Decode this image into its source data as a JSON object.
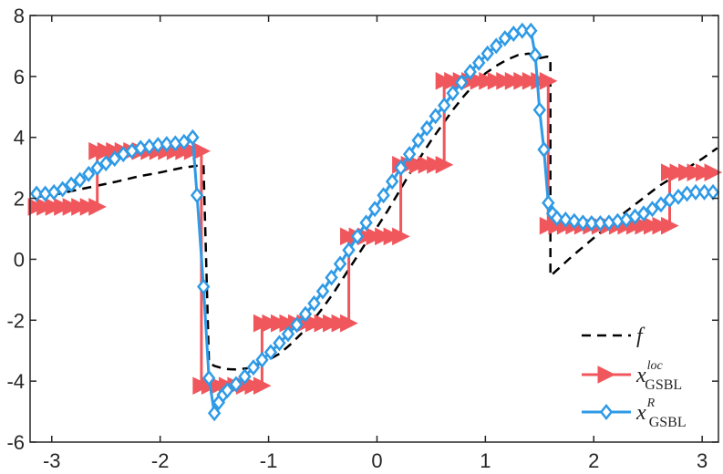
{
  "chart_data": {
    "type": "line",
    "xlim": [
      -3.2,
      3.15
    ],
    "ylim": [
      -6,
      8
    ],
    "x_ticks": [
      -3,
      -2,
      -1,
      0,
      1,
      2,
      3
    ],
    "y_ticks": [
      -6,
      -4,
      -2,
      0,
      2,
      4,
      6,
      8
    ],
    "x_tick_labels": [
      "-3",
      "-2",
      "-1",
      "0",
      "1",
      "2",
      "3"
    ],
    "y_tick_labels": [
      "-6",
      "-4",
      "-2",
      "0",
      "2",
      "4",
      "6",
      "8"
    ],
    "grid": false,
    "legend_position": "bottom-right",
    "series": [
      {
        "name": "f",
        "legend": {
          "main": "f",
          "sup": "",
          "sub": ""
        },
        "color": "#000000",
        "style": "dashed",
        "marker": "none",
        "x": [
          -3.14,
          -3.0,
          -2.8,
          -2.6,
          -2.4,
          -2.2,
          -2.0,
          -1.8,
          -1.6,
          -1.55,
          -1.5,
          -1.4,
          -1.3,
          -1.2,
          -1.1,
          -1.0,
          -0.9,
          -0.8,
          -0.7,
          -0.6,
          -0.5,
          -0.4,
          -0.3,
          -0.2,
          -0.1,
          0.0,
          0.1,
          0.2,
          0.3,
          0.4,
          0.5,
          0.6,
          0.7,
          0.8,
          0.9,
          1.0,
          1.1,
          1.2,
          1.3,
          1.4,
          1.5,
          1.57,
          1.6,
          1.6,
          1.8,
          2.0,
          2.2,
          2.4,
          2.6,
          2.8,
          3.0,
          3.14
        ],
        "y": [
          2.05,
          2.1,
          2.25,
          2.4,
          2.55,
          2.72,
          2.85,
          3.0,
          3.1,
          -3.4,
          -3.5,
          -3.6,
          -3.62,
          -3.58,
          -3.45,
          -3.3,
          -3.1,
          -2.8,
          -2.45,
          -2.05,
          -1.6,
          -1.1,
          -0.55,
          0.0,
          0.55,
          1.05,
          1.6,
          2.2,
          2.8,
          3.35,
          3.9,
          4.4,
          4.9,
          5.35,
          5.75,
          6.1,
          6.35,
          6.55,
          6.7,
          6.75,
          6.6,
          6.65,
          6.6,
          -0.55,
          0.1,
          0.7,
          1.3,
          1.85,
          2.4,
          2.85,
          3.3,
          3.65
        ]
      },
      {
        "name": "x_GSBL^loc",
        "legend": {
          "main": "x",
          "sup": "loc",
          "sub": "GSBL"
        },
        "color": "#f0575c",
        "style": "solid",
        "marker": "triangle-right",
        "x": [
          -3.14,
          -3.06,
          -2.98,
          -2.9,
          -2.82,
          -2.74,
          -2.66,
          -2.58,
          -2.58,
          -2.5,
          -2.42,
          -2.34,
          -2.26,
          -2.18,
          -2.1,
          -2.02,
          -1.94,
          -1.86,
          -1.78,
          -1.7,
          -1.62,
          -1.62,
          -1.54,
          -1.46,
          -1.38,
          -1.3,
          -1.22,
          -1.14,
          -1.06,
          -1.06,
          -0.98,
          -0.9,
          -0.82,
          -0.74,
          -0.66,
          -0.58,
          -0.5,
          -0.42,
          -0.34,
          -0.26,
          -0.26,
          -0.18,
          -0.1,
          -0.02,
          0.06,
          0.14,
          0.22,
          0.22,
          0.3,
          0.38,
          0.46,
          0.54,
          0.62,
          0.62,
          0.7,
          0.78,
          0.86,
          0.94,
          1.02,
          1.1,
          1.18,
          1.26,
          1.34,
          1.42,
          1.5,
          1.58,
          1.58,
          1.66,
          1.74,
          1.82,
          1.9,
          1.98,
          2.06,
          2.14,
          2.22,
          2.3,
          2.38,
          2.46,
          2.54,
          2.62,
          2.7,
          2.7,
          2.78,
          2.86,
          2.94,
          3.02,
          3.1
        ],
        "y": [
          1.72,
          1.72,
          1.72,
          1.72,
          1.72,
          1.72,
          1.72,
          1.72,
          3.55,
          3.55,
          3.55,
          3.55,
          3.55,
          3.55,
          3.55,
          3.55,
          3.55,
          3.55,
          3.55,
          3.55,
          3.55,
          -4.15,
          -4.15,
          -4.15,
          -4.15,
          -4.15,
          -4.15,
          -4.15,
          -4.15,
          -2.1,
          -2.1,
          -2.1,
          -2.1,
          -2.1,
          -2.1,
          -2.1,
          -2.1,
          -2.1,
          -2.1,
          -2.1,
          0.75,
          0.75,
          0.75,
          0.75,
          0.75,
          0.75,
          0.75,
          3.1,
          3.1,
          3.1,
          3.1,
          3.1,
          3.1,
          5.85,
          5.85,
          5.85,
          5.85,
          5.85,
          5.85,
          5.85,
          5.85,
          5.85,
          5.85,
          5.85,
          5.85,
          5.85,
          1.1,
          1.1,
          1.1,
          1.1,
          1.1,
          1.1,
          1.1,
          1.1,
          1.1,
          1.1,
          1.1,
          1.1,
          1.1,
          1.1,
          1.1,
          2.85,
          2.85,
          2.85,
          2.85,
          2.85,
          2.85
        ]
      },
      {
        "name": "x_GSBL^R",
        "legend": {
          "main": "x",
          "sup": "R",
          "sub": "GSBL"
        },
        "color": "#2f9ae6",
        "style": "solid",
        "marker": "diamond",
        "x": [
          -3.14,
          -3.06,
          -2.98,
          -2.9,
          -2.82,
          -2.74,
          -2.66,
          -2.58,
          -2.5,
          -2.42,
          -2.34,
          -2.26,
          -2.18,
          -2.1,
          -2.02,
          -1.94,
          -1.86,
          -1.78,
          -1.7,
          -1.66,
          -1.6,
          -1.55,
          -1.5,
          -1.46,
          -1.42,
          -1.38,
          -1.3,
          -1.22,
          -1.14,
          -1.06,
          -0.98,
          -0.9,
          -0.82,
          -0.74,
          -0.66,
          -0.58,
          -0.5,
          -0.42,
          -0.34,
          -0.26,
          -0.18,
          -0.1,
          -0.02,
          0.06,
          0.14,
          0.22,
          0.3,
          0.38,
          0.46,
          0.54,
          0.62,
          0.7,
          0.78,
          0.86,
          0.94,
          1.02,
          1.1,
          1.18,
          1.26,
          1.34,
          1.42,
          1.46,
          1.5,
          1.54,
          1.58,
          1.62,
          1.66,
          1.74,
          1.82,
          1.9,
          1.98,
          2.06,
          2.14,
          2.22,
          2.3,
          2.38,
          2.46,
          2.54,
          2.62,
          2.7,
          2.78,
          2.86,
          2.94,
          3.02,
          3.1
        ],
        "y": [
          2.15,
          2.15,
          2.2,
          2.3,
          2.45,
          2.6,
          2.8,
          3.0,
          3.15,
          3.3,
          3.45,
          3.55,
          3.65,
          3.7,
          3.75,
          3.78,
          3.8,
          3.85,
          4.0,
          2.1,
          -0.9,
          -3.9,
          -5.05,
          -4.7,
          -4.45,
          -4.3,
          -4.1,
          -3.85,
          -3.55,
          -3.3,
          -3.05,
          -2.75,
          -2.45,
          -2.15,
          -1.8,
          -1.45,
          -1.05,
          -0.6,
          -0.15,
          0.3,
          0.75,
          1.2,
          1.65,
          2.1,
          2.55,
          3.0,
          3.45,
          3.9,
          4.3,
          4.7,
          5.05,
          5.45,
          5.8,
          6.15,
          6.45,
          6.75,
          7.0,
          7.25,
          7.4,
          7.5,
          7.5,
          6.7,
          4.9,
          3.6,
          1.85,
          1.5,
          1.35,
          1.3,
          1.25,
          1.2,
          1.18,
          1.18,
          1.2,
          1.25,
          1.3,
          1.4,
          1.5,
          1.65,
          1.8,
          1.95,
          2.05,
          2.15,
          2.2,
          2.2,
          2.2
        ]
      }
    ]
  }
}
